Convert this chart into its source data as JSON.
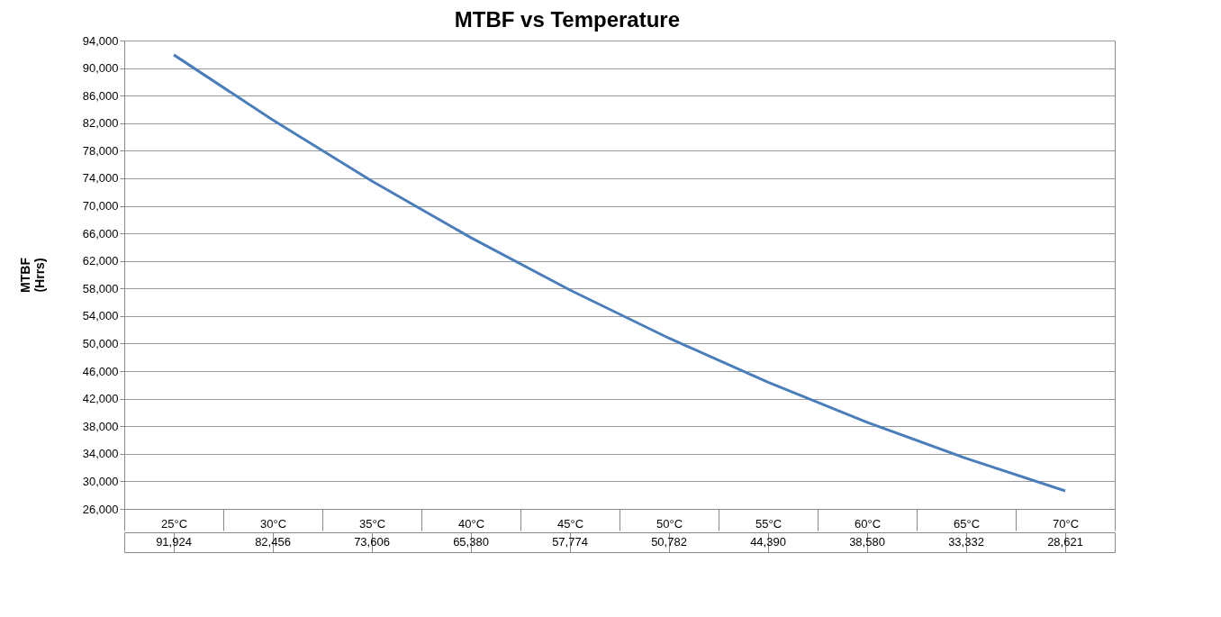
{
  "chart_data": {
    "type": "line",
    "title": "MTBF vs Temperature",
    "ylabel": "MTBF\n(Hrrs)",
    "categories": [
      "25°C",
      "30°C",
      "35°C",
      "40°C",
      "45°C",
      "50°C",
      "55°C",
      "60°C",
      "65°C",
      "70°C"
    ],
    "series": [
      {
        "color": "#4a7ebb",
        "values": [
          91924,
          82456,
          73606,
          65380,
          57774,
          50782,
          44390,
          38580,
          33332,
          28621
        ],
        "value_labels": [
          "91,924",
          "82,456",
          "73,606",
          "65,380",
          "57,774",
          "50,782",
          "44,390",
          "38,580",
          "33,332",
          "28,621"
        ]
      }
    ],
    "ylim": [
      26000,
      94000
    ],
    "yticks": [
      {
        "value": 26000,
        "label": "26,000"
      },
      {
        "value": 30000,
        "label": "30,000"
      },
      {
        "value": 34000,
        "label": "34,000"
      },
      {
        "value": 38000,
        "label": "38,000"
      },
      {
        "value": 42000,
        "label": "42,000"
      },
      {
        "value": 46000,
        "label": "46,000"
      },
      {
        "value": 50000,
        "label": "50,000"
      },
      {
        "value": 54000,
        "label": "54,000"
      },
      {
        "value": 58000,
        "label": "58,000"
      },
      {
        "value": 62000,
        "label": "62,000"
      },
      {
        "value": 66000,
        "label": "66,000"
      },
      {
        "value": 70000,
        "label": "70,000"
      },
      {
        "value": 74000,
        "label": "74,000"
      },
      {
        "value": 78000,
        "label": "78,000"
      },
      {
        "value": 82000,
        "label": "82,000"
      },
      {
        "value": 86000,
        "label": "86,000"
      },
      {
        "value": 90000,
        "label": "90,000"
      },
      {
        "value": 94000,
        "label": "94,000"
      }
    ],
    "grid": "y",
    "line_style": "solid",
    "marker": "none"
  }
}
